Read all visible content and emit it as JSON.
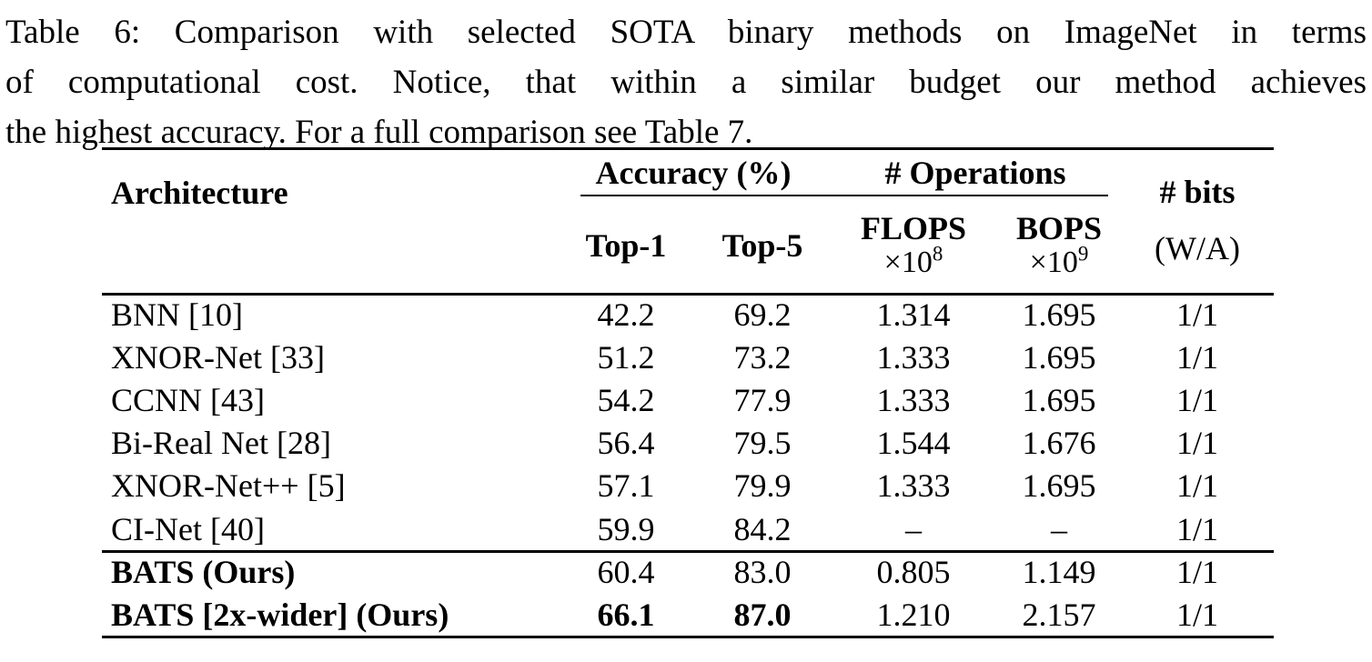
{
  "caption": {
    "lines": [
      "Table 6: Comparison with selected SOTA binary methods on ImageNet in terms",
      "of computational cost. Notice, that within a similar budget our method achieves",
      "the highest accuracy. For a full comparison see Table 7."
    ]
  },
  "table": {
    "headers": {
      "architecture": "Architecture",
      "accuracy_group": "Accuracy (%)",
      "operations_group": "# Operations",
      "top1": "Top-1",
      "top5": "Top-5",
      "flops_name": "FLOPS",
      "flops_base": "×10",
      "flops_exp": "8",
      "bops_name": "BOPS",
      "bops_base": "×10",
      "bops_exp": "9",
      "bits_line1": "# bits",
      "bits_line2": "(W/A)"
    },
    "rows": [
      {
        "architecture": "BNN [10]",
        "top1": "42.2",
        "top5": "69.2",
        "flops": "1.314",
        "bops": "1.695",
        "bits": "1/1"
      },
      {
        "architecture": "XNOR-Net [33]",
        "top1": "51.2",
        "top5": "73.2",
        "flops": "1.333",
        "bops": "1.695",
        "bits": "1/1"
      },
      {
        "architecture": "CCNN [43]",
        "top1": "54.2",
        "top5": "77.9",
        "flops": "1.333",
        "bops": "1.695",
        "bits": "1/1"
      },
      {
        "architecture": "Bi-Real Net [28]",
        "top1": "56.4",
        "top5": "79.5",
        "flops": "1.544",
        "bops": "1.676",
        "bits": "1/1"
      },
      {
        "architecture": "XNOR-Net++ [5]",
        "top1": "57.1",
        "top5": "79.9",
        "flops": "1.333",
        "bops": "1.695",
        "bits": "1/1"
      },
      {
        "architecture": "CI-Net [40]",
        "top1": "59.9",
        "top5": "84.2",
        "flops": "–",
        "bops": "–",
        "bits": "1/1"
      }
    ],
    "highlight_rows": [
      {
        "architecture": "BATS (Ours)",
        "top1": "60.4",
        "top5": "83.0",
        "flops": "0.805",
        "bops": "1.149",
        "bits": "1/1"
      },
      {
        "architecture": "BATS [2x-wider] (Ours)",
        "top1": "66.1",
        "top5": "87.0",
        "flops": "1.210",
        "bops": "2.157",
        "bits": "1/1"
      }
    ]
  }
}
